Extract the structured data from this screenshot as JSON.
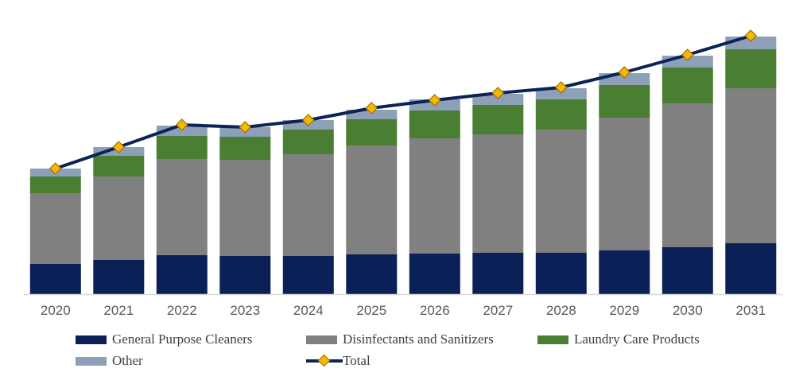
{
  "chart_data": {
    "type": "bar",
    "stacked": true,
    "categories": [
      "2020",
      "2021",
      "2022",
      "2023",
      "2024",
      "2025",
      "2026",
      "2027",
      "2028",
      "2029",
      "2030",
      "2031"
    ],
    "series": [
      {
        "name": "General Purpose Cleaners",
        "color": "#0b2057",
        "values": [
          38,
          43,
          49,
          48,
          48,
          50,
          51,
          52,
          52,
          55,
          59,
          64
        ]
      },
      {
        "name": "Disinfectants and Sanitizers",
        "color": "#808080",
        "values": [
          89,
          105,
          121,
          121,
          128,
          137,
          145,
          149,
          155,
          167,
          181,
          195
        ]
      },
      {
        "name": "Laundry Care Products",
        "color": "#4a7e32",
        "values": [
          21,
          26,
          29,
          29,
          31,
          33,
          35,
          37,
          38,
          41,
          45,
          49
        ]
      },
      {
        "name": "Other",
        "color": "#8da0b8",
        "values": [
          10,
          11,
          13,
          12,
          12,
          12,
          14,
          14,
          14,
          15,
          15,
          16
        ]
      }
    ],
    "line": {
      "name": "Total",
      "color": "#0b2355",
      "marker_color": "#f5b800",
      "values": [
        158,
        185,
        213,
        210,
        219,
        234,
        244,
        253,
        260,
        279,
        301,
        325
      ]
    },
    "ylim": [
      0,
      340
    ],
    "title": "",
    "xlabel": "",
    "ylabel": "",
    "grid": false,
    "legend": "bottom"
  },
  "legend": {
    "general": "General Purpose Cleaners",
    "disinfect": "Disinfectants and Sanitizers",
    "laundry": "Laundry Care Products",
    "other": "Other",
    "total": "Total"
  }
}
